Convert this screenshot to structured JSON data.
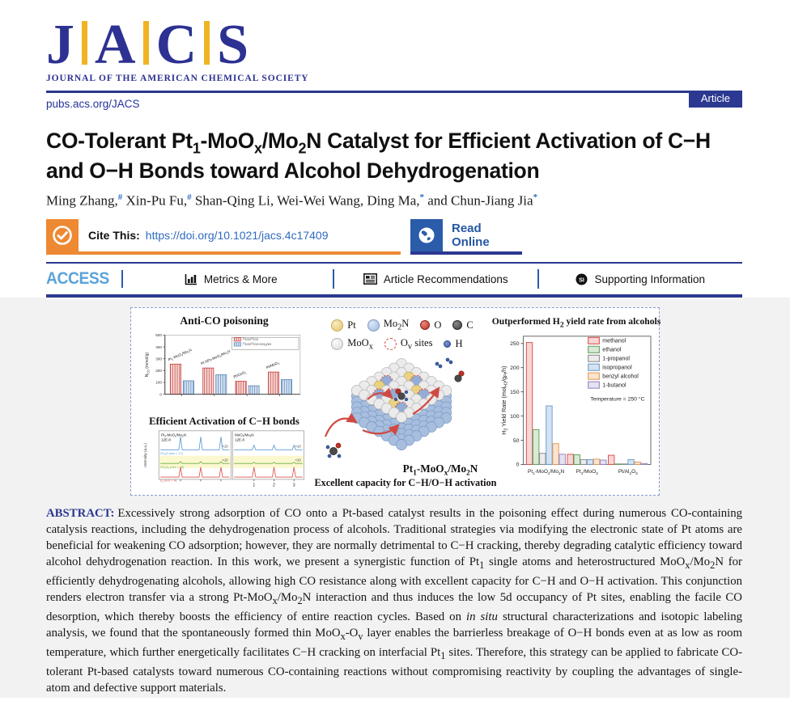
{
  "header": {
    "logo_letters": [
      "J",
      "A",
      "C",
      "S"
    ],
    "logo_tagline": "JOURNAL OF THE AMERICAN CHEMICAL SOCIETY",
    "site_link": "pubs.acs.org/JACS",
    "article_badge": "Article"
  },
  "title": "CO-Tolerant Pt~1~-MoO~x~/Mo~2~N Catalyst for Efficient Activation of C−H and O−H Bonds toward Alcohol Dehydrogenation",
  "authors": {
    "list": [
      {
        "name": "Ming Zhang,",
        "mark": "#"
      },
      {
        "name": " Xin-Pu Fu,",
        "mark": "#"
      },
      {
        "name": " Shan-Qing Li,",
        "mark": ""
      },
      {
        "name": " Wei-Wei Wang,",
        "mark": ""
      },
      {
        "name": " Ding Ma,",
        "mark": "*"
      },
      {
        "name": " and Chun-Jiang Jia",
        "mark": "*"
      }
    ]
  },
  "cite_bar": {
    "label": "Cite This:",
    "doi": "https://doi.org/10.1021/jacs.4c17409",
    "read_online": "Read Online"
  },
  "access_bar": {
    "access": "ACCESS",
    "items": [
      {
        "icon": "bar-chart-icon",
        "label": "Metrics & More"
      },
      {
        "icon": "article-icon",
        "label": "Article Recommendations"
      },
      {
        "icon": "si-icon",
        "label": "Supporting Information"
      }
    ]
  },
  "figure": {
    "caption": "Excellent capacity for C−H/O−H activation",
    "crystal_label": "Pt~1~-MoO~x~/Mo~2~N",
    "sphere_legend": [
      {
        "label": "Pt",
        "type": "pt"
      },
      {
        "label": "Mo~2~N",
        "type": "mo2n"
      },
      {
        "label": "O",
        "type": "o"
      },
      {
        "label": "C",
        "type": "c"
      },
      {
        "label": "MoO~x~",
        "type": "moox"
      },
      {
        "label": "O~v~ sites",
        "type": "ov"
      },
      {
        "label": "H",
        "type": "h"
      }
    ]
  },
  "chart_data": [
    {
      "id": "anti_co",
      "type": "bar",
      "title": "Anti-CO poisoning",
      "ylabel": "N~CO~ (mmol/g)",
      "ylim": [
        0,
        500
      ],
      "yticks": [
        0,
        100,
        200,
        300,
        400,
        500
      ],
      "categories": [
        "Pt~1~-MoO~x~/Mo~2~N",
        "Pt NPs-MoO~x~/Mo~2~N",
        "Pt/CeO~2~",
        "Pt/MoO~3~"
      ],
      "series": [
        {
          "name": "^12^CO/^13^CO",
          "color": "#c6453f",
          "fill": "#f8e3e1",
          "values": [
            255,
            222,
            110,
            188
          ]
        },
        {
          "name": "^12^CO/^13^CO+CH~3~OH",
          "color": "#5d87b8",
          "fill": "#dde9f4",
          "values": [
            114,
            165,
            72,
            124
          ]
        }
      ],
      "legend_position": "top-right",
      "grid": false
    },
    {
      "id": "h2_yield",
      "type": "bar",
      "title": "Outperformed H~2~  yield rate from alcohols",
      "ylabel": "H~2~ Yield Rate (mol~H2~/g~Pt~/h)",
      "ylim": [
        0,
        265
      ],
      "yticks": [
        0,
        50,
        100,
        150,
        200,
        250
      ],
      "categories": [
        "Pt~1~-MoO~x~/Mo~2~N",
        "Pt~1~/MoO~3~",
        "Pt/Al~2~O~3~"
      ],
      "series": [
        {
          "name": "methanol",
          "color": "#d9534f",
          "fill": "#f6d7d5",
          "values": [
            252,
            21,
            19
          ]
        },
        {
          "name": "ethanol",
          "color": "#63a05f",
          "fill": "#d8ead6",
          "values": [
            72,
            20,
            1
          ]
        },
        {
          "name": "1-propanol",
          "color": "#8c8c8c",
          "fill": "#ececec",
          "values": [
            23,
            10,
            1
          ]
        },
        {
          "name": "isopropanol",
          "color": "#6f9ec9",
          "fill": "#d3e3f1",
          "values": [
            121,
            10,
            10
          ]
        },
        {
          "name": "benzyl alcohol",
          "color": "#e09a5e",
          "fill": "#fae4ce",
          "values": [
            43,
            11,
            5
          ]
        },
        {
          "name": "1-butanol",
          "color": "#9488c1",
          "fill": "#e6e1f2",
          "values": [
            21,
            9,
            2
          ]
        }
      ],
      "annotation": "Temperature = 250 °C",
      "legend_position": "top-right",
      "grid": false
    },
    {
      "id": "ms_traces",
      "type": "line",
      "title": "Efficient Activation of C−H bonds",
      "ylabel": "Intensity (a.u.)",
      "panels": [
        {
          "label": "Pt~1~-MoO~x~/Mo~2~N",
          "scale": "12E-8",
          "peak_heights": {
            "blue": 17,
            "green": 2.5,
            "red": 13
          }
        },
        {
          "label": "MoO~x~/Mo~2~N",
          "scale": "12E-8",
          "peak_heights": {
            "blue": 6,
            "green": 1.5,
            "red": 13
          }
        }
      ],
      "traces": [
        {
          "label": "CH~3~D (m/z = 17)",
          "color": "#5b9bd5",
          "gain": "×10"
        },
        {
          "label": "CH~2~D~2~ (m/z = 18)",
          "color": "#70ad47",
          "gain": "×10",
          "band": "#fbf8d0"
        },
        {
          "label": "D~2~ (m/z = 4)",
          "color": "#d9534f",
          "gain": ""
        }
      ],
      "xticks": [
        1,
        2,
        3
      ]
    }
  ],
  "abstract": {
    "label": "ABSTRACT:",
    "text": "Excessively strong adsorption of CO onto a Pt-based catalyst results in the poisoning effect during numerous CO-containing catalysis reactions, including the dehydrogenation process of alcohols. Traditional strategies via modifying the electronic state of Pt atoms are beneficial for weakening CO adsorption; however, they are normally detrimental to C−H cracking, thereby degrading catalytic efficiency toward alcohol dehydrogenation reaction. In this work, we present a synergistic function of Pt~1~ single atoms and heterostructured MoO~x~/Mo~2~N for efficiently dehydrogenating alcohols, allowing high CO resistance along with excellent capacity for C−H and O−H activation. This conjunction renders electron transfer via a strong Pt-MoO~x~/Mo~2~N interaction and thus induces the low 5d occupancy of Pt sites, enabling the facile CO desorption, which thereby boosts the efficiency of entire reaction cycles. Based on _in situ_ structural characterizations and isotopic labeling analysis, we found that the spontaneously formed thin MoO~x~-O~v~ layer enables the barrierless breakage of O−H bonds even at as low as room temperature, which further energetically facilitates C−H cracking on interfacial Pt~1~ sites. Therefore, this strategy can be applied to fabricate CO-tolerant Pt-based catalysts toward numerous CO-containing reactions without compromising reactivity by coupling the advantages of single-atom and defective support materials."
  }
}
